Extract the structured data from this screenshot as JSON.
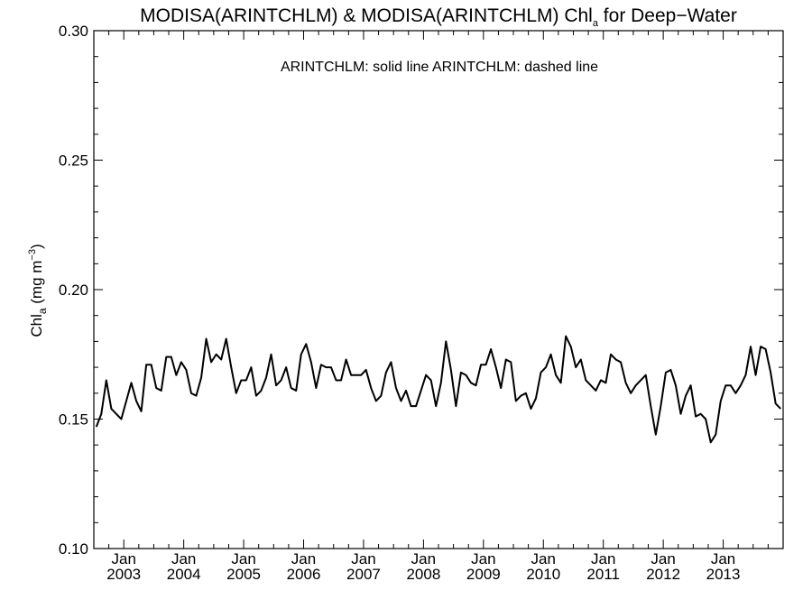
{
  "chart_data": {
    "type": "line",
    "title": {
      "prefix": "MODISA(ARINTCHLM) & MODISA(ARINTCHLM)  Chl",
      "sub": "a",
      "suffix": " for Deep−Water"
    },
    "legend_text": "ARINTCHLM: solid line   ARINTCHLM: dashed line",
    "ylabel": {
      "prefix": "Chl",
      "sub": "a",
      "mid": " (mg m",
      "sup": "−3",
      "suffix": ")"
    },
    "ylim": [
      0.1,
      0.3
    ],
    "yticks": [
      0.1,
      0.15,
      0.2,
      0.25,
      0.3
    ],
    "ytick_labels": [
      "0.10",
      "0.15",
      "0.20",
      "0.25",
      "0.30"
    ],
    "xlim": [
      "2002-07-01",
      "2014-01-01"
    ],
    "xtick_month_label": "Jan",
    "xtick_years": [
      "2003",
      "2004",
      "2005",
      "2006",
      "2007",
      "2008",
      "2009",
      "2010",
      "2011",
      "2012",
      "2013"
    ],
    "grid": false,
    "series": [
      {
        "style": "solid",
        "color": "#000000",
        "start": "2002-07",
        "values": [
          0.147,
          0.152,
          0.165,
          0.154,
          0.152,
          0.15,
          0.157,
          0.164,
          0.157,
          0.153,
          0.171,
          0.171,
          0.162,
          0.161,
          0.174,
          0.174,
          0.167,
          0.172,
          0.169,
          0.16,
          0.159,
          0.166,
          0.181,
          0.172,
          0.175,
          0.173,
          0.181,
          0.17,
          0.16,
          0.165,
          0.165,
          0.17,
          0.159,
          0.161,
          0.166,
          0.175,
          0.163,
          0.165,
          0.17,
          0.162,
          0.161,
          0.175,
          0.179,
          0.172,
          0.162,
          0.171,
          0.17,
          0.17,
          0.165,
          0.165,
          0.173,
          0.167,
          0.167,
          0.167,
          0.169,
          0.162,
          0.157,
          0.159,
          0.168,
          0.172,
          0.162,
          0.157,
          0.161,
          0.155,
          0.155,
          0.161,
          0.167,
          0.165,
          0.155,
          0.164,
          0.18,
          0.169,
          0.155,
          0.168,
          0.167,
          0.164,
          0.163,
          0.171,
          0.171,
          0.177,
          0.17,
          0.162,
          0.173,
          0.172,
          0.157,
          0.159,
          0.16,
          0.154,
          0.158,
          0.168,
          0.17,
          0.175,
          0.167,
          0.164,
          0.182,
          0.178,
          0.17,
          0.173,
          0.165,
          0.163,
          0.161,
          0.165,
          0.164,
          0.175,
          0.173,
          0.172,
          0.164,
          0.16,
          0.163,
          0.165,
          0.167,
          0.155,
          0.144,
          0.155,
          0.168,
          0.169,
          0.163,
          0.152,
          0.159,
          0.163,
          0.151,
          0.152,
          0.15,
          0.141,
          0.144,
          0.157,
          0.163,
          0.163,
          0.16,
          0.163,
          0.167,
          0.178,
          0.167,
          0.178,
          0.177,
          0.168,
          0.156,
          0.154
        ]
      }
    ]
  }
}
